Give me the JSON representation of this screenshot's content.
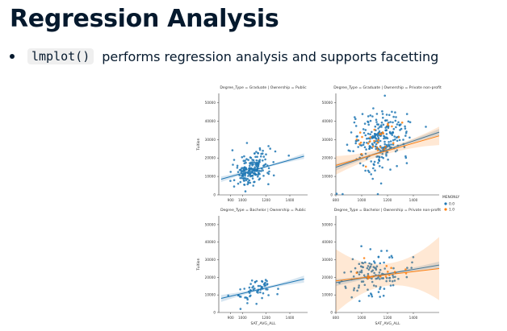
{
  "slide": {
    "title": "Regression Analysis",
    "bullet": {
      "code": "lmplot()",
      "text": "performs regression analysis and supports facetting"
    }
  },
  "colors": {
    "series0": "#1f77b4",
    "series1": "#ff7f0e",
    "text": "#05192d"
  },
  "chart_data": {
    "type": "scatter",
    "legend": {
      "title": "MENONLY",
      "entries": [
        "0.0",
        "1.0"
      ],
      "placement": "right"
    },
    "facets": [
      {
        "title": "Degree_Type = Graduate | Ownership = Public",
        "ylabel": "Tuition",
        "xlabel": "",
        "xticks": [
          "900",
          "1000",
          "1200",
          "1400"
        ],
        "yticks": [
          "50000",
          "40000",
          "30000",
          "20000",
          "10000",
          "0"
        ],
        "xlim": [
          800,
          1550
        ],
        "ylim": [
          0,
          55000
        ],
        "series": [
          {
            "n": 200,
            "center": [
              1080,
              14000
            ],
            "spread": [
              80,
              4500
            ],
            "fit": [
              [
                820,
                8500
              ],
              [
                1520,
                21000
              ]
            ],
            "band": 1500
          }
        ]
      },
      {
        "title": "Degree_Type = Graduate | Ownership = Private non-profit",
        "ylabel": "",
        "xlabel": "",
        "xticks": [
          "800",
          "1000",
          "1200",
          "1400"
        ],
        "yticks": [
          "50000",
          "40000",
          "30000",
          "20000",
          "10000",
          "0"
        ],
        "xlim": [
          800,
          1600
        ],
        "ylim": [
          0,
          55000
        ],
        "series": [
          {
            "n": 260,
            "center": [
              1150,
              30000
            ],
            "spread": [
              110,
              7500
            ],
            "fit": [
              [
                800,
                15000
              ],
              [
                1600,
                34000
              ]
            ],
            "band": 1800
          },
          {
            "n": 30,
            "center": [
              1130,
              29000
            ],
            "spread": [
              100,
              5500
            ],
            "fit": [
              [
                800,
                16000
              ],
              [
                1600,
                32000
              ]
            ],
            "band": 5000
          }
        ]
      },
      {
        "title": "Degree_Type = Bachelor | Ownership = Public",
        "ylabel": "Tuition",
        "xlabel": "SAT_AVG_ALL",
        "xticks": [
          "900",
          "1000",
          "1200",
          "1400"
        ],
        "yticks": [
          "50000",
          "40000",
          "30000",
          "20000",
          "10000",
          "0"
        ],
        "xlim": [
          800,
          1550
        ],
        "ylim": [
          0,
          55000
        ],
        "series": [
          {
            "n": 60,
            "center": [
              1100,
              13000
            ],
            "spread": [
              90,
              3500
            ],
            "fit": [
              [
                820,
                8000
              ],
              [
                1520,
                19000
              ]
            ],
            "band": 2000
          }
        ]
      },
      {
        "title": "Degree_Type = Bachelor | Ownership = Private non-profit",
        "ylabel": "",
        "xlabel": "SAT_AVG_ALL",
        "xticks": [
          "800",
          "1000",
          "1200",
          "1400"
        ],
        "yticks": [
          "50000",
          "40000",
          "30000",
          "20000",
          "10000",
          "0"
        ],
        "xlim": [
          800,
          1600
        ],
        "ylim": [
          0,
          55000
        ],
        "series": [
          {
            "n": 120,
            "center": [
              1100,
              22000
            ],
            "spread": [
              110,
              6000
            ],
            "fit": [
              [
                800,
                17000
              ],
              [
                1600,
                27000
              ]
            ],
            "band": 2000
          },
          {
            "n": 15,
            "center": [
              1120,
              23000
            ],
            "spread": [
              110,
              4000
            ],
            "fit": [
              [
                800,
                18000
              ],
              [
                1600,
                25000
              ]
            ],
            "band": 18000
          }
        ]
      }
    ]
  }
}
